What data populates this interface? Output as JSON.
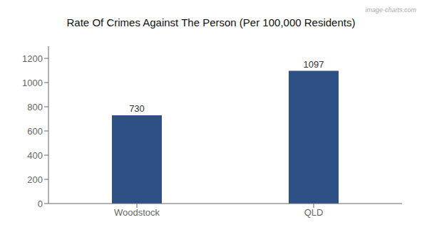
{
  "chart_data": {
    "type": "bar",
    "title": "Rate Of Crimes Against The Person (Per 100,000 Residents)",
    "categories": [
      "Woodstock",
      "QLD"
    ],
    "values": [
      730,
      1097
    ],
    "color": "#2e5085",
    "ylim": [
      0,
      1300
    ],
    "yticks": [
      0,
      200,
      400,
      600,
      800,
      1000,
      1200
    ],
    "grid": false,
    "data_labels": true,
    "annotations": [
      "image-charts.com"
    ]
  }
}
